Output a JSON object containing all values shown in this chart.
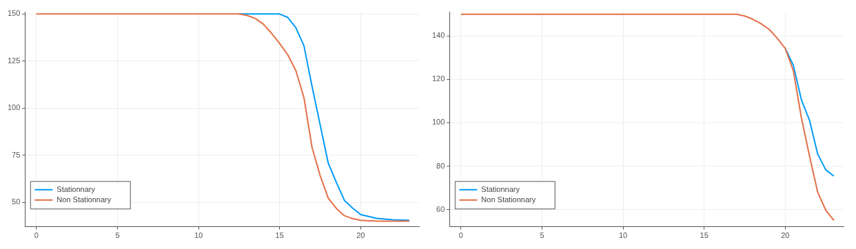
{
  "chart_data": [
    {
      "type": "line",
      "x": [
        0,
        12.5,
        13,
        13.5,
        14,
        14.5,
        15,
        15.5,
        16,
        16.5,
        17,
        17.5,
        18,
        18.5,
        19,
        19.5,
        20,
        21,
        22,
        23
      ],
      "series": [
        {
          "name": "Stationnary",
          "color": "#009afa",
          "values": [
            null,
            150,
            150,
            150,
            150,
            150,
            150,
            148.2,
            142.8,
            133.2,
            111.6,
            91.2,
            70.8,
            60.6,
            51,
            47,
            43.5,
            41.5,
            40.8,
            40.5
          ]
        },
        {
          "name": "Non Stationnary",
          "color": "#e36f47",
          "values": [
            150,
            150,
            149.2,
            147.6,
            144.6,
            139.8,
            134.4,
            128.4,
            120,
            105.6,
            79.2,
            64.2,
            52.2,
            46.8,
            42.9,
            41.4,
            40.5,
            40,
            40,
            40
          ]
        }
      ],
      "xlim": [
        -0.7,
        23.6
      ],
      "xticks": [
        0,
        5,
        10,
        15,
        20
      ],
      "ylim": [
        37,
        151
      ],
      "yticks": [
        50,
        75,
        100,
        125,
        150
      ],
      "grid": true,
      "legend": "bottom left"
    },
    {
      "type": "line",
      "x": [
        0,
        17,
        17.5,
        18,
        18.5,
        19,
        19.5,
        20,
        20.5,
        21,
        21.5,
        22,
        22.5,
        23
      ],
      "series": [
        {
          "name": "Stationnary",
          "color": "#009afa",
          "values": [
            null,
            null,
            null,
            null,
            null,
            null,
            null,
            134.3,
            126.5,
            110.5,
            101.1,
            85.6,
            78.3,
            75.4
          ]
        },
        {
          "name": "Non Stationnary",
          "color": "#e36f47",
          "values": [
            150,
            150,
            149.2,
            147.7,
            145.7,
            143.1,
            139,
            134.3,
            124,
            102.2,
            84.6,
            68,
            59.7,
            55
          ]
        }
      ],
      "xlim": [
        -0.7,
        23.6
      ],
      "xticks": [
        0,
        5,
        10,
        15,
        20
      ],
      "ylim": [
        52,
        151
      ],
      "yticks": [
        60,
        80,
        100,
        120,
        140
      ],
      "grid": true,
      "legend": "bottom left"
    }
  ]
}
